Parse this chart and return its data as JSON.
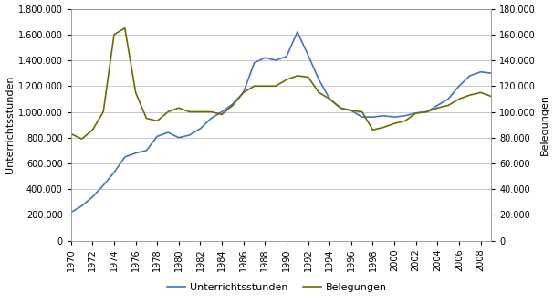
{
  "years": [
    1970,
    1971,
    1972,
    1973,
    1974,
    1975,
    1976,
    1977,
    1978,
    1979,
    1980,
    1981,
    1982,
    1983,
    1984,
    1985,
    1986,
    1987,
    1988,
    1989,
    1990,
    1991,
    1992,
    1993,
    1994,
    1995,
    1996,
    1997,
    1998,
    1999,
    2000,
    2001,
    2002,
    2003,
    2004,
    2005,
    2006,
    2007,
    2008,
    2009
  ],
  "unterrichtsstunden": [
    220000,
    270000,
    340000,
    430000,
    530000,
    650000,
    680000,
    700000,
    810000,
    840000,
    800000,
    820000,
    870000,
    950000,
    1000000,
    1060000,
    1150000,
    1380000,
    1420000,
    1400000,
    1430000,
    1620000,
    1440000,
    1250000,
    1100000,
    1030000,
    1010000,
    960000,
    960000,
    970000,
    960000,
    970000,
    990000,
    1000000,
    1050000,
    1100000,
    1200000,
    1280000,
    1310000,
    1300000
  ],
  "belegungen": [
    83000,
    79000,
    86000,
    100000,
    160000,
    165000,
    115000,
    95000,
    93000,
    100000,
    103000,
    100000,
    100000,
    100000,
    98000,
    105000,
    115000,
    120000,
    120000,
    120000,
    125000,
    128000,
    127000,
    115000,
    110000,
    103000,
    101000,
    100000,
    86000,
    88000,
    91000,
    93000,
    99000,
    100000,
    103000,
    105000,
    110000,
    113000,
    115000,
    112000
  ],
  "left_ylim": [
    0,
    1800000
  ],
  "right_ylim": [
    0,
    180000
  ],
  "left_yticks": [
    0,
    200000,
    400000,
    600000,
    800000,
    1000000,
    1200000,
    1400000,
    1600000,
    1800000
  ],
  "right_yticks": [
    0,
    20000,
    40000,
    60000,
    80000,
    100000,
    120000,
    140000,
    160000,
    180000
  ],
  "line_blue_color": "#4472C4",
  "line_olive_color": "#6B6B00",
  "left_ylabel": "Unterrichtsstunden",
  "right_ylabel": "Belegungen",
  "legend_labels": [
    "Unterrichtsstunden",
    "Belegungen"
  ],
  "background_color": "#FFFFFF",
  "grid_color": "#C8C8C8",
  "ylabel_fontsize": 8,
  "tick_fontsize": 7,
  "legend_fontsize": 8
}
